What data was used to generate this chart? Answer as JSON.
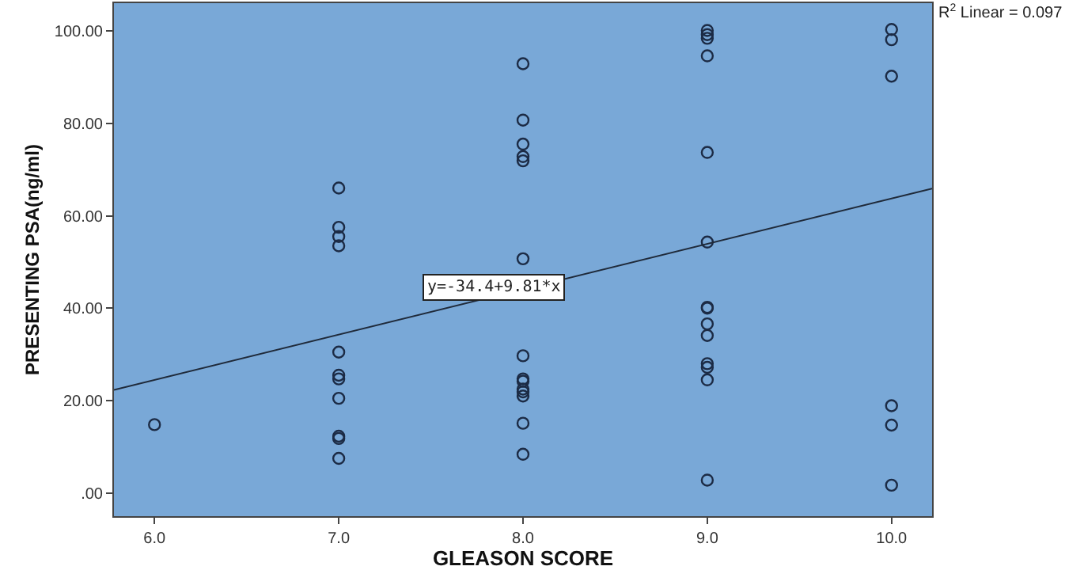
{
  "chart_data": {
    "type": "scatter",
    "xlabel": "GLEASON SCORE",
    "ylabel": "PRESENTING PSA(ng/ml)",
    "xlim": [
      5.78,
      10.22
    ],
    "ylim": [
      -5,
      106
    ],
    "xticks": [
      {
        "value": 6,
        "label": "6.0"
      },
      {
        "value": 7,
        "label": "7.0"
      },
      {
        "value": 8,
        "label": "8.0"
      },
      {
        "value": 9,
        "label": "9.0"
      },
      {
        "value": 10,
        "label": "10.0"
      }
    ],
    "yticks": [
      {
        "value": 0,
        "label": ".00"
      },
      {
        "value": 20,
        "label": "20.00"
      },
      {
        "value": 40,
        "label": "40.00"
      },
      {
        "value": 60,
        "label": "60.00"
      },
      {
        "value": 80,
        "label": "80.00"
      },
      {
        "value": 100,
        "label": "100.00"
      }
    ],
    "grid": false,
    "marker": "circle",
    "series": [
      {
        "type": "scatter",
        "color": "#1c2b45",
        "x": [
          6,
          7,
          7,
          7,
          7,
          7,
          7,
          7,
          7,
          7,
          7,
          7,
          8,
          8,
          8,
          8,
          8,
          8,
          8,
          8,
          8,
          8,
          8,
          8,
          8,
          8,
          9,
          9,
          9,
          9,
          9,
          9,
          9,
          9,
          9,
          9,
          9,
          9,
          9,
          9,
          10,
          10,
          10,
          10,
          10,
          10
        ],
        "values": [
          14.8,
          66,
          57.5,
          55.5,
          53.5,
          30.5,
          25.5,
          24.7,
          20.5,
          12.3,
          11.8,
          7.5,
          92.9,
          80.7,
          75.5,
          72.8,
          71.9,
          50.7,
          29.7,
          24.7,
          24.2,
          22.5,
          21.9,
          21,
          15.1,
          8.4,
          100.1,
          99.2,
          98.4,
          94.6,
          73.7,
          54.3,
          40.2,
          40,
          36.6,
          34.1,
          28,
          27.2,
          24.5,
          2.8,
          100.3,
          98.1,
          90.2,
          18.9,
          14.7,
          1.7
        ]
      },
      {
        "type": "line",
        "color": "#1f2a3a",
        "x": [
          5.78,
          10.22
        ],
        "values": [
          22.3,
          65.9
        ],
        "marker": "none"
      }
    ],
    "annotations": [
      {
        "text": "y=-34.4+9.81*x",
        "x": 7.84,
        "y": 44.4
      },
      "R$^{2}$ Linear = 0.097"
    ]
  }
}
